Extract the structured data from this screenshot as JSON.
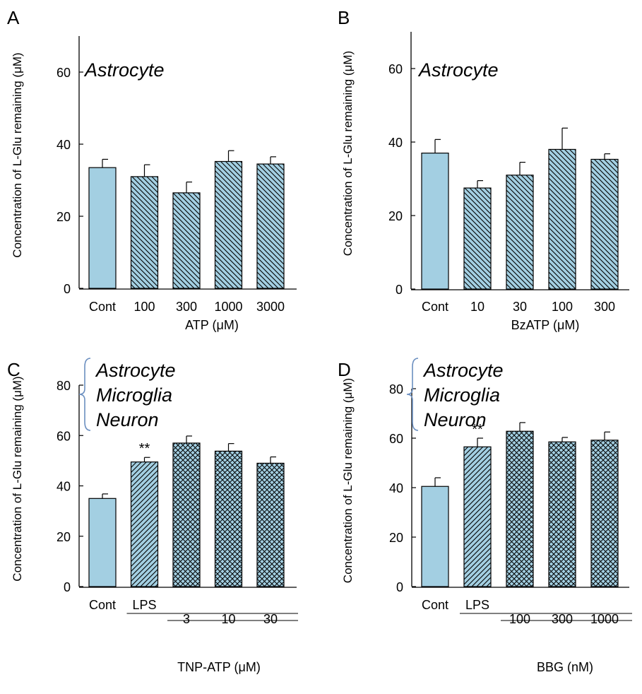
{
  "colors": {
    "bar_fill": "#a3cfe2",
    "bar_stroke": "#000000",
    "axis": "#000000",
    "brace": "#6b8fc0"
  },
  "chart_data": [
    {
      "panel_label": "A",
      "type": "bar",
      "title": "Astrocyte",
      "cell_lines": [
        "Astrocyte"
      ],
      "ylabel": "Concentration of L-Glu remaining (μM)",
      "xlabel": "ATP (μM)",
      "ylim": [
        0,
        70
      ],
      "yticks": [
        0,
        20,
        40,
        60
      ],
      "categories": [
        "Cont",
        "100",
        "300",
        "1000",
        "3000"
      ],
      "values": [
        33.5,
        31,
        26.5,
        35.2,
        34.5
      ],
      "errors": [
        2.3,
        3.3,
        3,
        3,
        2
      ],
      "patterns": [
        "solid",
        "back",
        "back",
        "back",
        "back"
      ],
      "annotations": []
    },
    {
      "panel_label": "B",
      "type": "bar",
      "title": "Astrocyte",
      "cell_lines": [
        "Astrocyte"
      ],
      "ylabel": "Concentration of L-Glu remaining (μM)",
      "xlabel": "BzATP (μM)",
      "ylim": [
        0,
        70
      ],
      "yticks": [
        0,
        20,
        40,
        60
      ],
      "categories": [
        "Cont",
        "10",
        "30",
        "100",
        "300"
      ],
      "values": [
        37,
        27.5,
        31,
        38,
        35.3
      ],
      "errors": [
        3.7,
        2,
        3.5,
        5.8,
        1.5
      ],
      "patterns": [
        "solid",
        "back",
        "back",
        "back",
        "back"
      ],
      "annotations": []
    },
    {
      "panel_label": "C",
      "type": "bar",
      "title": "",
      "cell_lines": [
        "Astrocyte",
        "Microglia",
        "Neuron"
      ],
      "ylabel": "Concentration of L-Glu remaining (μM)",
      "xlabel": "TNP-ATP (μM)",
      "ylim": [
        0,
        80
      ],
      "yticks": [
        0,
        20,
        40,
        60,
        80
      ],
      "categories": [
        "Cont",
        "LPS",
        "3",
        "10",
        "30"
      ],
      "values": [
        35,
        49.5,
        57,
        53.8,
        49
      ],
      "errors": [
        1.8,
        1.8,
        2.8,
        3,
        2.5
      ],
      "patterns": [
        "solid",
        "fwd",
        "cross",
        "cross",
        "cross"
      ],
      "annotations": [
        {
          "category": "LPS",
          "text": "**"
        }
      ]
    },
    {
      "panel_label": "D",
      "type": "bar",
      "title": "",
      "cell_lines": [
        "Astrocyte",
        "Microglia",
        "Neuron"
      ],
      "ylabel": "Concentration of L-Glu remaining (μM)",
      "xlabel": "BBG (nM)",
      "ylim": [
        0,
        80
      ],
      "yticks": [
        0,
        20,
        40,
        60,
        80
      ],
      "categories": [
        "Cont",
        "LPS",
        "100",
        "300",
        "1000"
      ],
      "values": [
        40.5,
        56.5,
        62.8,
        58.5,
        59.2
      ],
      "errors": [
        3.5,
        3.5,
        3.5,
        1.8,
        3.3
      ],
      "patterns": [
        "solid",
        "fwd",
        "cross",
        "cross",
        "cross"
      ],
      "annotations": [
        {
          "category": "LPS",
          "text": "**"
        }
      ]
    }
  ]
}
